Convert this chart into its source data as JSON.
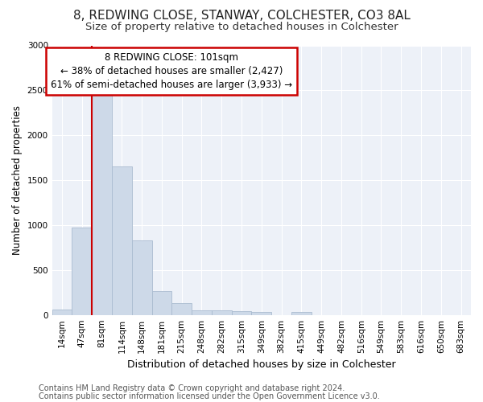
{
  "title1": "8, REDWING CLOSE, STANWAY, COLCHESTER, CO3 8AL",
  "title2": "Size of property relative to detached houses in Colchester",
  "xlabel": "Distribution of detached houses by size in Colchester",
  "ylabel": "Number of detached properties",
  "footer1": "Contains HM Land Registry data © Crown copyright and database right 2024.",
  "footer2": "Contains public sector information licensed under the Open Government Licence v3.0.",
  "annotation_title": "8 REDWING CLOSE: 101sqm",
  "annotation_line1": "← 38% of detached houses are smaller (2,427)",
  "annotation_line2": "61% of semi-detached houses are larger (3,933) →",
  "bar_labels": [
    "14sqm",
    "47sqm",
    "81sqm",
    "114sqm",
    "148sqm",
    "181sqm",
    "215sqm",
    "248sqm",
    "282sqm",
    "315sqm",
    "349sqm",
    "382sqm",
    "415sqm",
    "449sqm",
    "482sqm",
    "516sqm",
    "549sqm",
    "583sqm",
    "616sqm",
    "650sqm",
    "683sqm"
  ],
  "bar_values": [
    60,
    975,
    2450,
    1650,
    830,
    265,
    130,
    55,
    50,
    45,
    35,
    0,
    35,
    0,
    0,
    0,
    0,
    0,
    0,
    0,
    0
  ],
  "bar_color": "#cdd9e8",
  "bar_edge_color": "#aabcd0",
  "vline_color": "#cc0000",
  "vline_x": 1.5,
  "ylim": [
    0,
    3000
  ],
  "yticks": [
    0,
    500,
    1000,
    1500,
    2000,
    2500,
    3000
  ],
  "background_color": "#ffffff",
  "plot_bg_color": "#edf1f8",
  "grid_color": "#ffffff",
  "annotation_box_color": "#ffffff",
  "annotation_border_color": "#cc0000",
  "title1_fontsize": 11,
  "title2_fontsize": 9.5,
  "xlabel_fontsize": 9,
  "ylabel_fontsize": 8.5,
  "tick_fontsize": 7.5,
  "footer_fontsize": 7,
  "annotation_fontsize": 8.5
}
